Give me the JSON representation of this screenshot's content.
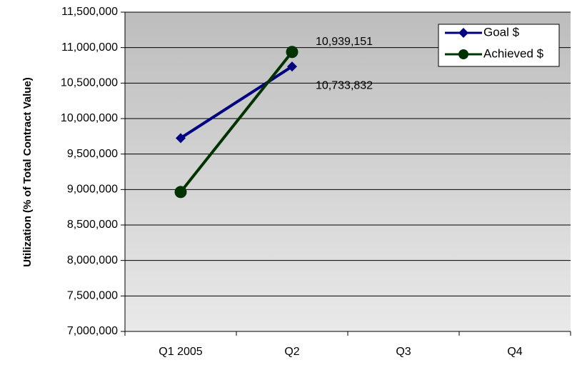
{
  "chart_data": {
    "type": "line",
    "title": "",
    "xlabel": "",
    "ylabel": "Utilization (% of Total Contract Value)",
    "categories": [
      "Q1 2005",
      "Q2",
      "Q3",
      "Q4"
    ],
    "ylim": [
      7000000,
      11500000
    ],
    "yticks": [
      7000000,
      7500000,
      8000000,
      8500000,
      9000000,
      9500000,
      10000000,
      10500000,
      11000000,
      11500000
    ],
    "ytick_labels": [
      "7,000,000",
      "7,500,000",
      "8,000,000",
      "8,500,000",
      "9,000,000",
      "9,500,000",
      "10,000,000",
      "10,500,000",
      "11,000,000",
      "11,500,000"
    ],
    "grid": true,
    "legend_position": "top-right",
    "background": "gradient-gray",
    "series": [
      {
        "name": "Goal $",
        "color": "#000080",
        "marker": "diamond",
        "values": [
          9725000,
          10733832,
          null,
          null
        ]
      },
      {
        "name": "Achieved $",
        "color": "#003300",
        "marker": "circle",
        "values": [
          8965000,
          10939151,
          null,
          null
        ]
      }
    ],
    "data_labels": [
      {
        "series": 1,
        "index": 1,
        "text": "10,939,151"
      },
      {
        "series": 0,
        "index": 1,
        "text": "10,733,832"
      }
    ]
  }
}
